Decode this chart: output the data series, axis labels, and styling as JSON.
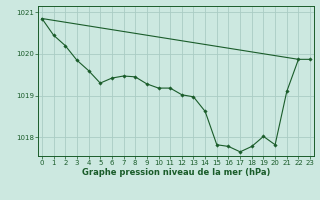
{
  "x": [
    0,
    1,
    2,
    3,
    4,
    5,
    6,
    7,
    8,
    9,
    10,
    11,
    12,
    13,
    14,
    15,
    16,
    17,
    18,
    19,
    20,
    21,
    22,
    23
  ],
  "y_main": [
    1020.85,
    1020.45,
    1020.2,
    1019.85,
    1019.6,
    1019.3,
    1019.42,
    1019.47,
    1019.45,
    1019.28,
    1019.18,
    1019.18,
    1019.02,
    1018.97,
    1018.62,
    1017.82,
    1017.78,
    1017.65,
    1017.78,
    1018.02,
    1017.82,
    1019.1,
    1019.87,
    1019.87
  ],
  "trend_x": [
    0,
    22
  ],
  "trend_y": [
    1020.85,
    1019.87
  ],
  "ylim": [
    1017.55,
    1021.15
  ],
  "yticks": [
    1018,
    1019,
    1020,
    1021
  ],
  "xlim": [
    -0.3,
    23.3
  ],
  "bg_color": "#cce8e0",
  "line_color": "#1a5c2a",
  "grid_color": "#aaccc4",
  "xlabel": "Graphe pression niveau de la mer (hPa)"
}
